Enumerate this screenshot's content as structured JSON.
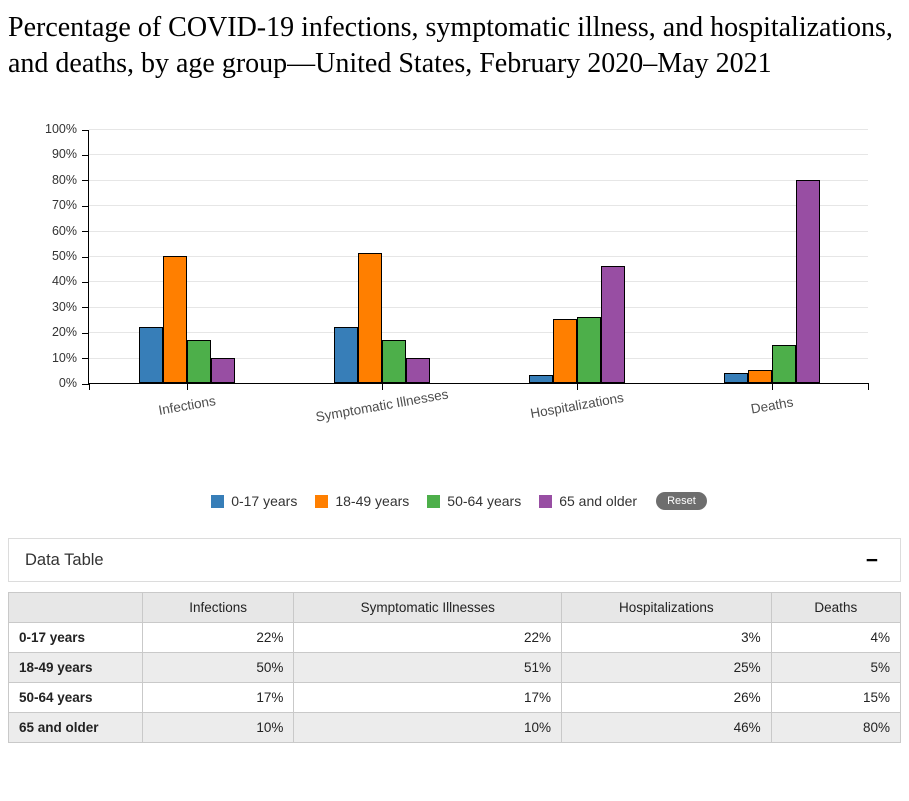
{
  "page": {
    "title": "Percentage of COVID-19 infections, symptomatic illness, and hospitalizations, and deaths, by age group—United States, February 2020–May 2021"
  },
  "chart_data": {
    "type": "bar",
    "categories": [
      "Infections",
      "Symptomatic Illnesses",
      "Hospitalizations",
      "Deaths"
    ],
    "series": [
      {
        "name": "0-17 years",
        "color": "#377eb8",
        "values": [
          22,
          22,
          3,
          4
        ]
      },
      {
        "name": "18-49 years",
        "color": "#ff7f00",
        "values": [
          50,
          51,
          25,
          5
        ]
      },
      {
        "name": "50-64 years",
        "color": "#4daf4a",
        "values": [
          17,
          17,
          26,
          15
        ]
      },
      {
        "name": "65 and older",
        "color": "#984ea3",
        "values": [
          10,
          10,
          46,
          80
        ]
      }
    ],
    "ylim": [
      0,
      100
    ],
    "y_tick_step": 10,
    "y_tick_suffix": "%",
    "grid": true,
    "legend_position": "bottom",
    "bar_border_color": "#000000",
    "gridline_color": "#e6e6e6"
  },
  "legend": {
    "reset_label": "Reset"
  },
  "data_table": {
    "title": "Data Table",
    "collapse_label": "−",
    "columns": [
      "",
      "Infections",
      "Symptomatic Illnesses",
      "Hospitalizations",
      "Deaths"
    ],
    "rows": [
      {
        "label": "0-17 years",
        "values": [
          "22%",
          "22%",
          "3%",
          "4%"
        ]
      },
      {
        "label": "18-49 years",
        "values": [
          "50%",
          "51%",
          "25%",
          "5%"
        ]
      },
      {
        "label": "50-64 years",
        "values": [
          "17%",
          "17%",
          "26%",
          "15%"
        ]
      },
      {
        "label": "65 and older",
        "values": [
          "10%",
          "10%",
          "46%",
          "80%"
        ]
      }
    ]
  }
}
